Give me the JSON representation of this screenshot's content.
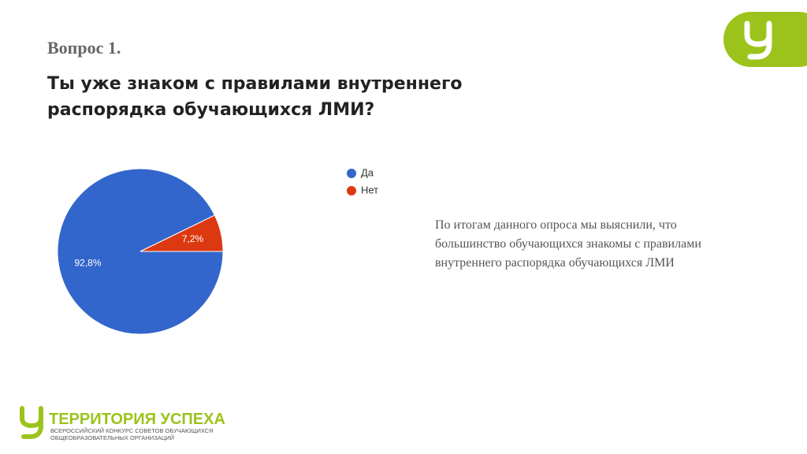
{
  "header": {
    "question": "Вопрос 1.",
    "title": "Ты уже знаком с правилами внутреннего распорядка обучающихся ЛМИ?"
  },
  "chart_data": {
    "type": "pie",
    "categories": [
      "Да",
      "Нет"
    ],
    "values": [
      92.8,
      7.2
    ],
    "value_labels": [
      "92,8%",
      "7,2%"
    ],
    "colors": [
      "#3366cc",
      "#dc3912"
    ],
    "legend": "top-right"
  },
  "description": "По итогам данного опроса мы выяснили, что большинство обучающихся знакомы с правилами внутреннего распорядка обучающихся ЛМИ",
  "footer": {
    "brand": "ТЕРРИТОРИЯ УСПЕХА",
    "line1": "ВСЕРОССИЙСКИЙ КОНКУРС СОВЕТОВ ОБУЧАЮЩИХСЯ",
    "line2": "ОБЩЕОБРАЗОВАТЕЛЬНЫХ ОРГАНИЗАЦИЙ"
  }
}
